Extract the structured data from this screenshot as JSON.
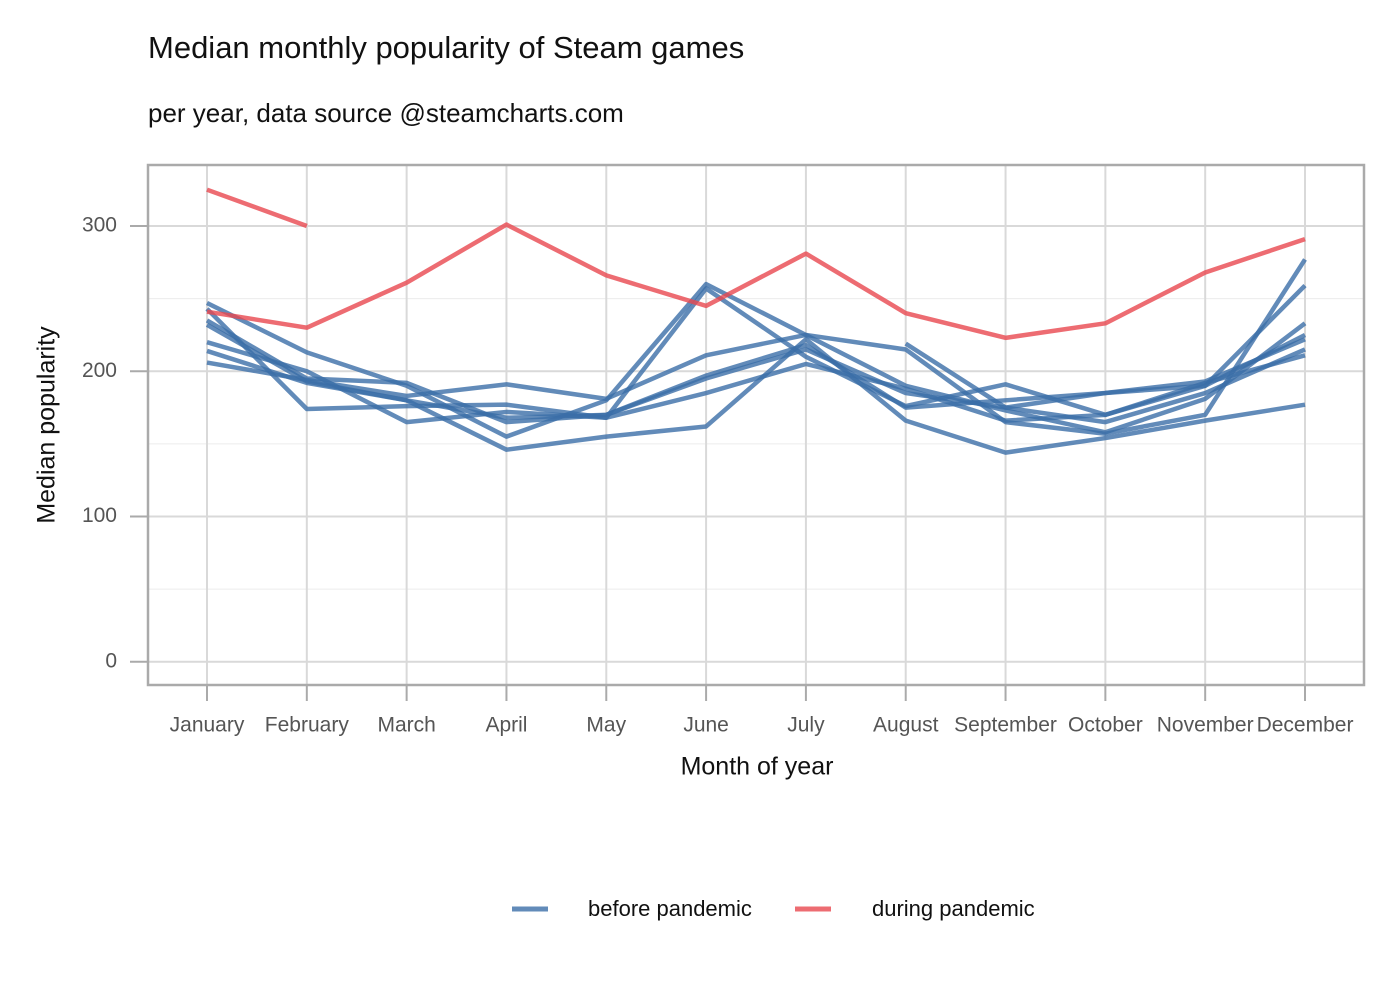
{
  "chart_data": {
    "type": "line",
    "title": "Median monthly popularity of Steam games",
    "subtitle": "per year, data source @steamcharts.com",
    "x_label": "Month of year",
    "y_label": "Median popularity",
    "categories": [
      "January",
      "February",
      "March",
      "April",
      "May",
      "June",
      "July",
      "August",
      "September",
      "October",
      "November",
      "December"
    ],
    "ylim": [
      -16,
      342
    ],
    "yticks": [
      0,
      100,
      200,
      300
    ],
    "yminor": [
      50,
      150,
      250
    ],
    "grid": true,
    "legend": "bottom",
    "series": [
      {
        "name": "before pandemic",
        "color": "#3b6ea8",
        "lines": [
          [
            247,
            213,
            190,
            155,
            180,
            260,
            225,
            215,
            165,
            157,
            170,
            277
          ],
          [
            243,
            174,
            176,
            177,
            168,
            257,
            210,
            176,
            191,
            170,
            190,
            259
          ],
          [
            232,
            193,
            180,
            146,
            155,
            162,
            222,
            166,
            144,
            154,
            166,
            177
          ],
          [
            206,
            194,
            183,
            191,
            181,
            211,
            225,
            190,
            173,
            158,
            181,
            233
          ],
          [
            220,
            200,
            165,
            172,
            168,
            185,
            205,
            188,
            166,
            170,
            192,
            211
          ],
          [
            214,
            192,
            180,
            168,
            170,
            197,
            218,
            175,
            180,
            185,
            193,
            222
          ],
          [
            235,
            195,
            192,
            165,
            170,
            195,
            215,
            185,
            175,
            165,
            185,
            215
          ],
          [
            null,
            null,
            null,
            null,
            null,
            null,
            null,
            219,
            175,
            185,
            190,
            225
          ]
        ]
      },
      {
        "name": "during pandemic",
        "color": "#e8474f",
        "lines": [
          [
            241,
            230,
            261,
            301,
            266,
            245,
            281,
            240,
            223,
            233,
            268,
            291
          ],
          [
            325,
            300,
            null,
            null,
            null,
            null,
            null,
            null,
            null,
            null,
            null,
            null
          ]
        ]
      }
    ]
  }
}
